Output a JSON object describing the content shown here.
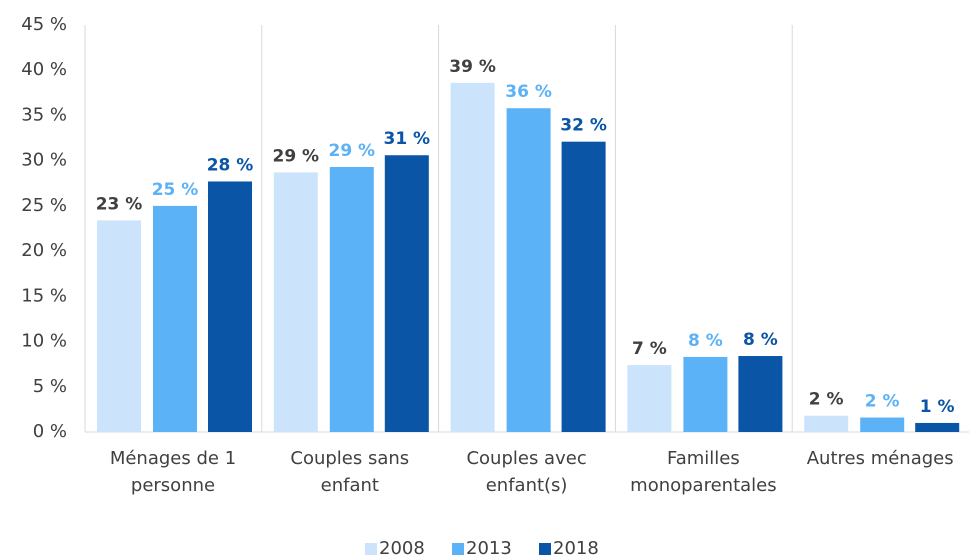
{
  "chart_data": {
    "type": "bar",
    "categories": [
      "Ménages de 1 personne",
      "Couples sans enfant",
      "Couples avec enfant(s)",
      "Familles monoparentales",
      "Autres ménages"
    ],
    "series": [
      {
        "name": "2008",
        "color": "#cce4fb",
        "label_color": "#404040",
        "values": [
          23.4,
          28.7,
          38.6,
          7.4,
          1.8
        ],
        "value_labels": [
          "23 %",
          "29 %",
          "39 %",
          "7 %",
          "2 %"
        ]
      },
      {
        "name": "2013",
        "color": "#5cb2f7",
        "label_color": "#5cb2f7",
        "values": [
          25.0,
          29.3,
          35.8,
          8.3,
          1.6
        ],
        "value_labels": [
          "25 %",
          "29 %",
          "36 %",
          "8 %",
          "2 %"
        ]
      },
      {
        "name": "2018",
        "color": "#0a55a5",
        "label_color": "#0a55a5",
        "values": [
          27.7,
          30.6,
          32.1,
          8.4,
          1.0
        ],
        "value_labels": [
          "28 %",
          "31 %",
          "32 %",
          "8 %",
          "1 %"
        ]
      }
    ],
    "ylim": [
      0,
      45
    ],
    "yticks": [
      {
        "value": 0,
        "label": "0 %"
      },
      {
        "value": 5,
        "label": "5 %"
      },
      {
        "value": 10,
        "label": "10 %"
      },
      {
        "value": 15,
        "label": "15 %"
      },
      {
        "value": 20,
        "label": "20 %"
      },
      {
        "value": 25,
        "label": "25 %"
      },
      {
        "value": 30,
        "label": "30 %"
      },
      {
        "value": 35,
        "label": "35 %"
      },
      {
        "value": 40,
        "label": "40 %"
      },
      {
        "value": 45,
        "label": "45 %"
      }
    ],
    "grid": false,
    "legend": "bottom"
  }
}
